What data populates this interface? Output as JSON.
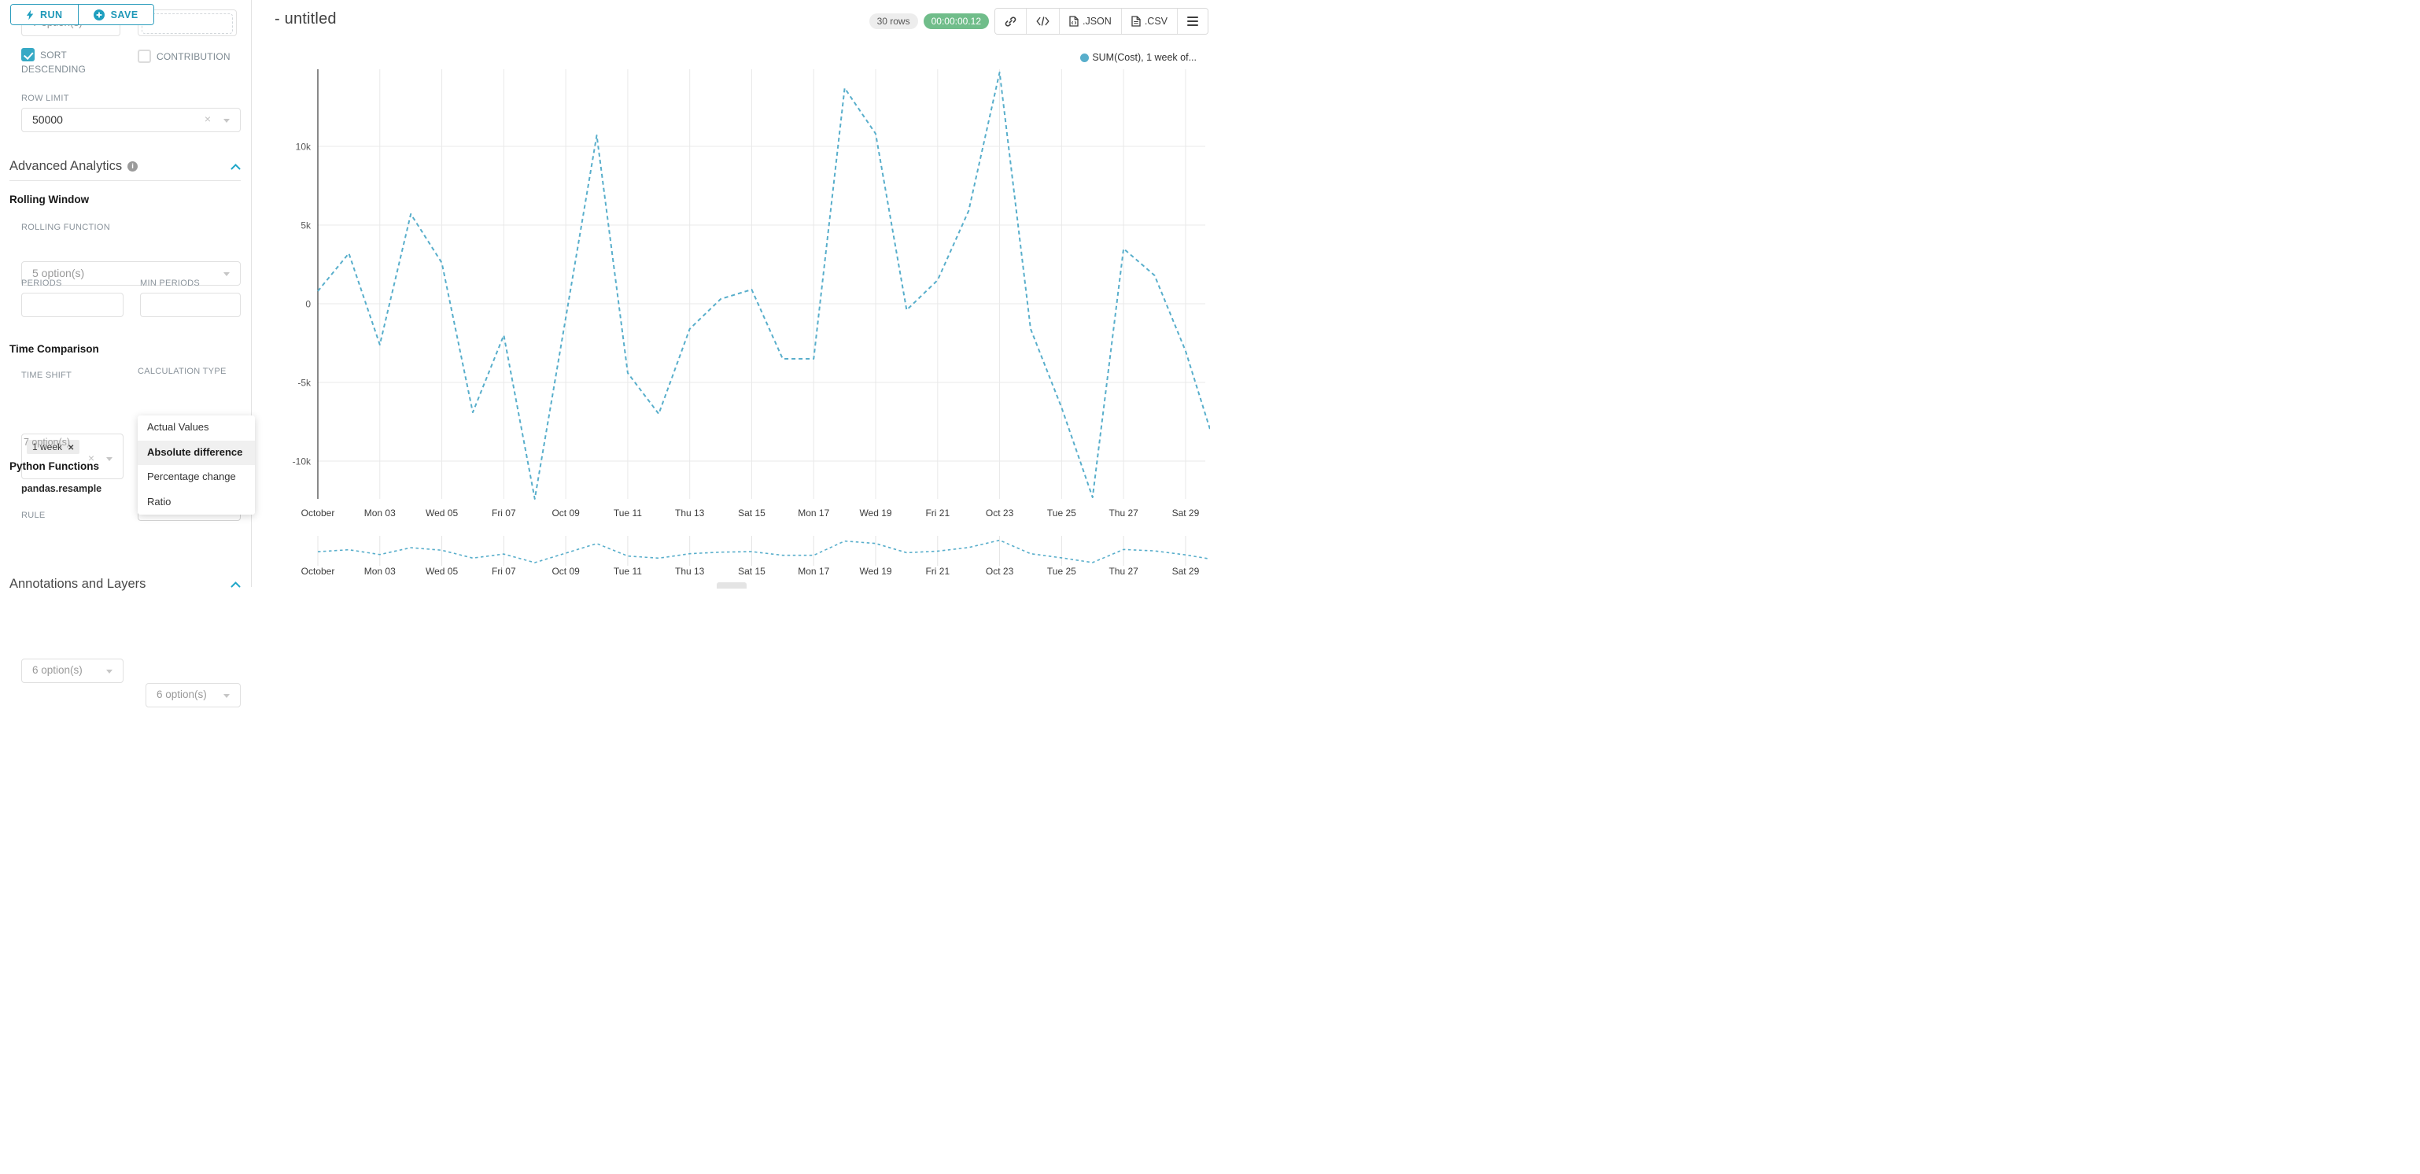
{
  "colors": {
    "accent": "#20a7c9",
    "line": "#58aecb",
    "timer_green": "#70bd8a",
    "highlight_row": "#f0f0f0"
  },
  "toolbar": {
    "run_label": "RUN",
    "save_label": "SAVE"
  },
  "sidebar": {
    "partial_left_value": "7 option(s)",
    "sort_descending_label": "SORT DESCENDING",
    "contribution_label": "CONTRIBUTION",
    "row_limit": {
      "label": "ROW LIMIT",
      "value": "50000"
    },
    "advanced_analytics_title": "Advanced Analytics",
    "rolling_window": {
      "title": "Rolling Window",
      "rolling_function_label": "ROLLING FUNCTION",
      "rolling_function_placeholder": "5 option(s)",
      "periods_label": "PERIODS",
      "min_periods_label": "MIN PERIODS"
    },
    "time_comparison": {
      "title": "Time Comparison",
      "time_shift_label": "TIME SHIFT",
      "time_shift_tag": "1 week",
      "time_shift_helper": "7 option(s)",
      "calculation_type_label": "CALCULATION TYPE",
      "calculation_type_value": "Absolute...",
      "dropdown_options": [
        "Actual Values",
        "Absolute difference",
        "Percentage change",
        "Ratio"
      ],
      "selected_option": "Absolute difference"
    },
    "python_functions": {
      "title": "Python Functions",
      "subtitle": "pandas.resample",
      "rule_label": "RULE",
      "rule_placeholder_1": "6 option(s)",
      "rule_placeholder_2": "6 option(s)"
    },
    "annotations_title": "Annotations and Layers"
  },
  "header": {
    "title": "- untitled",
    "rows_badge": "30 rows",
    "timer_badge": "00:00:00.12",
    "json_label": ".JSON",
    "csv_label": ".CSV"
  },
  "legend": {
    "label": "SUM(Cost), 1 week of...",
    "color": "#58aecb"
  },
  "chart_data": {
    "type": "line",
    "title": "",
    "xlabel": "",
    "ylabel": "",
    "x": [
      "Oct 01",
      "Oct 02",
      "Oct 03",
      "Oct 04",
      "Oct 05",
      "Oct 06",
      "Oct 07",
      "Oct 08",
      "Oct 09",
      "Oct 10",
      "Oct 11",
      "Oct 12",
      "Oct 13",
      "Oct 14",
      "Oct 15",
      "Oct 16",
      "Oct 17",
      "Oct 18",
      "Oct 19",
      "Oct 20",
      "Oct 21",
      "Oct 22",
      "Oct 23",
      "Oct 24",
      "Oct 25",
      "Oct 26",
      "Oct 27",
      "Oct 28",
      "Oct 29",
      "Oct 30"
    ],
    "series": [
      {
        "name": "SUM(Cost), 1 week offset (absolute difference)",
        "values": [
          800,
          3200,
          -2600,
          5700,
          2600,
          -6900,
          -2000,
          -12400,
          -900,
          10700,
          -4400,
          -7000,
          -1600,
          300,
          900,
          -3500,
          -3500,
          13700,
          10800,
          -400,
          1500,
          5900,
          14700,
          -1600,
          -6600,
          -12300,
          3500,
          1800,
          -3000,
          -9300
        ]
      }
    ],
    "x_tick_labels": [
      "October",
      "Mon 03",
      "Wed 05",
      "Fri 07",
      "Oct 09",
      "Tue 11",
      "Thu 13",
      "Sat 15",
      "Mon 17",
      "Wed 19",
      "Fri 21",
      "Oct 23",
      "Tue 25",
      "Thu 27",
      "Sat 29"
    ],
    "x_tick_days": [
      1,
      3,
      5,
      7,
      9,
      11,
      13,
      15,
      17,
      19,
      21,
      23,
      25,
      27,
      29
    ],
    "y_ticks": [
      {
        "label": "10k",
        "value": 10000
      },
      {
        "label": "5k",
        "value": 5000
      },
      {
        "label": "0",
        "value": 0
      },
      {
        "label": "-5k",
        "value": -5000
      },
      {
        "label": "-10k",
        "value": -10000
      }
    ],
    "ylim": [
      -13000,
      15200
    ],
    "line_style": "dashed",
    "grid": true,
    "legend_entries": [
      "SUM(Cost), 1 week of..."
    ],
    "legend_position": "top-right",
    "has_mini_preview": true
  }
}
